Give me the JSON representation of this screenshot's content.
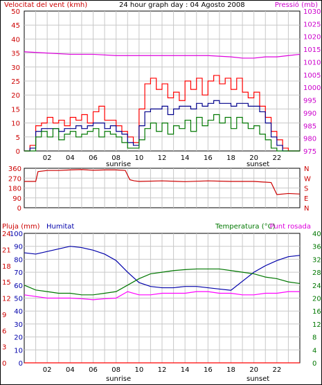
{
  "chart_data": [
    {
      "type": "line",
      "panel": "wind-pressure",
      "title": "24 hour graph day : 04 Agosto 2008",
      "left_axis_label": "Velocitat del vent (kmh)",
      "right_axis_label": "Pressió (mb)",
      "ylim_left": [
        0,
        50
      ],
      "yticks_left": [
        "0",
        "5",
        "10",
        "15",
        "20",
        "25",
        "30",
        "35",
        "40",
        "45",
        "50"
      ],
      "ylim_right": [
        975,
        1030
      ],
      "yticks_right": [
        "975",
        "980",
        "985",
        "990",
        "995",
        "1000",
        "1005",
        "1010",
        "1015",
        "1020",
        "1025",
        "1030"
      ],
      "xlim": [
        0,
        24
      ],
      "xticks": [
        "02",
        "04",
        "06",
        "08",
        "10",
        "12",
        "14",
        "16",
        "18",
        "20",
        "22"
      ],
      "sunrise_label": "sunrise",
      "sunset_label": "sunset",
      "colors": {
        "gust": "#ff0000",
        "speed": "#00008b",
        "wind_avg": "#007700",
        "pressure": "#dd00dd"
      },
      "series": [
        {
          "role": "pressure",
          "axis": "right",
          "x": [
            0,
            2,
            4,
            6,
            8,
            10,
            12,
            14,
            16,
            18,
            19,
            20,
            21,
            22,
            23,
            24
          ],
          "values": [
            1014,
            1013.5,
            1013,
            1013,
            1012.5,
            1012.5,
            1012.5,
            1012.5,
            1012.5,
            1012,
            1011.5,
            1011.5,
            1012,
            1012,
            1012.5,
            1013
          ]
        },
        {
          "role": "gust",
          "axis": "left",
          "x": [
            0,
            0.5,
            1,
            1.5,
            2,
            2.5,
            3,
            3.5,
            4,
            4.5,
            5,
            5.5,
            6,
            6.5,
            7,
            7.5,
            8,
            8.5,
            9,
            9.5,
            10,
            10.5,
            11,
            11.5,
            12,
            12.5,
            13,
            13.5,
            14,
            14.5,
            15,
            15.5,
            16,
            16.5,
            17,
            17.5,
            18,
            18.5,
            19,
            19.5,
            20,
            20.5,
            21,
            21.5,
            22,
            22.5,
            23,
            24
          ],
          "values": [
            0,
            2,
            9,
            10,
            12,
            10,
            11,
            9,
            12,
            11,
            13,
            10,
            14,
            16,
            11,
            11,
            9,
            7,
            5,
            3,
            15,
            24,
            26,
            22,
            24,
            19,
            21,
            18,
            25,
            22,
            26,
            20,
            25,
            27,
            24,
            26,
            22,
            26,
            21,
            19,
            21,
            16,
            12,
            7,
            4,
            1,
            0,
            0
          ]
        },
        {
          "role": "speed",
          "axis": "left",
          "x": [
            0,
            0.5,
            1,
            1.5,
            2,
            2.5,
            3,
            3.5,
            4,
            4.5,
            5,
            5.5,
            6,
            6.5,
            7,
            7.5,
            8,
            8.5,
            9,
            9.5,
            10,
            10.5,
            11,
            11.5,
            12,
            12.5,
            13,
            13.5,
            14,
            14.5,
            15,
            15.5,
            16,
            16.5,
            17,
            17.5,
            18,
            18.5,
            19,
            19.5,
            20,
            20.5,
            21,
            21.5,
            22,
            22.5,
            23,
            24
          ],
          "values": [
            0,
            1,
            7,
            8,
            8,
            8,
            7,
            8,
            8,
            9,
            8,
            9,
            10,
            10,
            8,
            9,
            7,
            6,
            3,
            2,
            9,
            14,
            15,
            15,
            16,
            13,
            15,
            16,
            16,
            15,
            17,
            16,
            17,
            18,
            17,
            17,
            16,
            17,
            17,
            16,
            16,
            14,
            10,
            5,
            2,
            0,
            0,
            0
          ]
        },
        {
          "role": "wind_avg",
          "axis": "left",
          "x": [
            0,
            0.5,
            1,
            1.5,
            2,
            2.5,
            3,
            3.5,
            4,
            4.5,
            5,
            5.5,
            6,
            6.5,
            7,
            7.5,
            8,
            8.5,
            9,
            9.5,
            10,
            10.5,
            11,
            11.5,
            12,
            12.5,
            13,
            13.5,
            14,
            14.5,
            15,
            15.5,
            16,
            16.5,
            17,
            17.5,
            18,
            18.5,
            19,
            19.5,
            20,
            20.5,
            21,
            21.5,
            22,
            22.5,
            23,
            24
          ],
          "values": [
            0,
            0,
            5,
            7,
            5,
            8,
            4,
            6,
            7,
            5,
            6,
            7,
            8,
            5,
            7,
            6,
            5,
            3,
            1,
            1,
            4,
            8,
            10,
            7,
            10,
            6,
            9,
            8,
            11,
            7,
            12,
            9,
            11,
            13,
            10,
            12,
            8,
            12,
            10,
            8,
            9,
            6,
            4,
            1,
            0,
            0,
            0,
            0
          ]
        }
      ]
    },
    {
      "type": "line",
      "panel": "wind-direction",
      "ylim": [
        0,
        360
      ],
      "yticks_left": [
        "360",
        "270",
        "180",
        "90",
        "0"
      ],
      "yticks_right": [
        "N",
        "W",
        "S",
        "E",
        "N"
      ],
      "xlim": [
        0,
        24
      ],
      "color": "#cc0000",
      "series": [
        {
          "role": "direction",
          "x": [
            0,
            1,
            1.2,
            2,
            3,
            4,
            5,
            6,
            7,
            8,
            8.8,
            9.2,
            9.6,
            10,
            12,
            14,
            16,
            18,
            20,
            21.5,
            22,
            23,
            24
          ],
          "values": [
            240,
            240,
            330,
            340,
            340,
            345,
            348,
            342,
            345,
            345,
            340,
            255,
            245,
            240,
            245,
            238,
            245,
            240,
            240,
            230,
            120,
            130,
            125
          ]
        }
      ]
    },
    {
      "type": "line",
      "panel": "rain-humidity-temperature",
      "rain_label": "Pluja (mm)",
      "humidity_label": "Humitat",
      "temperature_label": "Temperatura (°C)",
      "dewpoint_label": "Punt rosada",
      "ylim_humidity": [
        0,
        100
      ],
      "yticks_humidity": [
        "0",
        "10",
        "20",
        "30",
        "40",
        "50",
        "60",
        "70",
        "80",
        "90",
        "100"
      ],
      "ylim_rain": [
        0,
        24
      ],
      "yticks_rain": [
        "0",
        "3",
        "6",
        "9",
        "12",
        "15",
        "18",
        "21",
        "24"
      ],
      "ylim_temp": [
        0,
        40
      ],
      "yticks_temp": [
        "0",
        "4",
        "8",
        "12",
        "16",
        "20",
        "24",
        "28",
        "32",
        "36",
        "40"
      ],
      "xlim": [
        0,
        24
      ],
      "xticks": [
        "02",
        "04",
        "06",
        "08",
        "10",
        "12",
        "14",
        "16",
        "18",
        "20",
        "22"
      ],
      "sunrise_label": "sunrise",
      "sunset_label": "sunset",
      "colors": {
        "rain": "#ff0000",
        "humidity": "#0000aa",
        "temperature": "#007700",
        "dewpoint": "#ff00ff"
      },
      "series": [
        {
          "role": "humidity",
          "x": [
            0,
            1,
            2,
            3,
            4,
            5,
            6,
            7,
            8,
            9,
            10,
            11,
            12,
            13,
            14,
            15,
            16,
            17,
            18,
            19,
            20,
            21,
            22,
            23,
            24
          ],
          "values": [
            85,
            84,
            86,
            88,
            90,
            89,
            87,
            84,
            79,
            70,
            62,
            59,
            58,
            58,
            59,
            59,
            58,
            57,
            56,
            63,
            70,
            75,
            79,
            82,
            83
          ]
        },
        {
          "role": "rain",
          "x": [
            0,
            24
          ],
          "values": [
            0,
            0
          ]
        },
        {
          "role": "temperature",
          "x": [
            0,
            1,
            2,
            3,
            4,
            5,
            6,
            7,
            8,
            9,
            10,
            11,
            12,
            13,
            14,
            15,
            16,
            17,
            18,
            19,
            20,
            21,
            22,
            23,
            24
          ],
          "values": [
            24,
            22.5,
            22,
            21.5,
            21.5,
            21,
            21,
            21.5,
            22,
            24,
            26,
            27.5,
            28,
            28.5,
            28.8,
            29,
            29,
            29,
            28.5,
            28,
            27.5,
            26.5,
            26,
            25,
            24.5
          ]
        },
        {
          "role": "dewpoint",
          "x": [
            0,
            1,
            2,
            3,
            4,
            5,
            6,
            7,
            8,
            9,
            10,
            11,
            12,
            13,
            14,
            15,
            16,
            17,
            18,
            19,
            20,
            21,
            22,
            23,
            24
          ],
          "values": [
            21,
            20.5,
            20,
            20,
            20,
            19.8,
            19.5,
            19.8,
            20,
            22,
            21,
            21,
            21.5,
            21.5,
            21.5,
            22,
            22,
            21.5,
            21.5,
            21,
            21,
            21.5,
            21.5,
            22,
            22
          ]
        }
      ]
    }
  ]
}
